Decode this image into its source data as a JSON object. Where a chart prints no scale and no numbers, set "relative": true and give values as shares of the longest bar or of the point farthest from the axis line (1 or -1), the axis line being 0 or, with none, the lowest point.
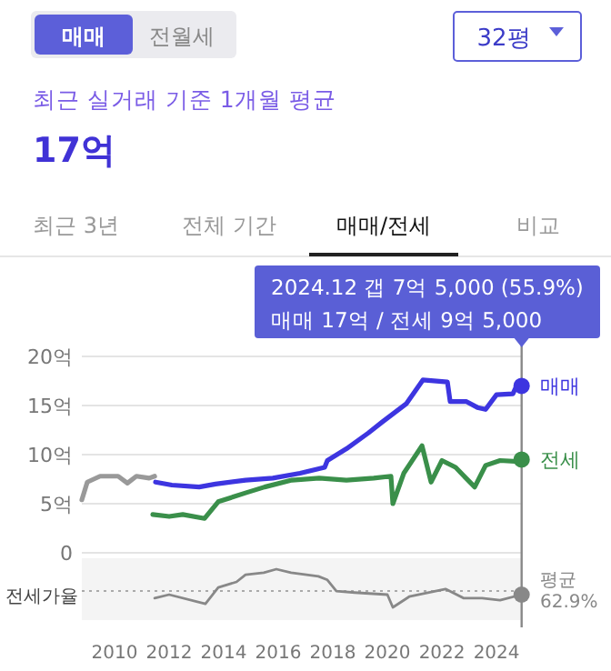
{
  "chart_data": [
    {
      "type": "line",
      "title": "17억",
      "subtitle": "최근 실거래 기준 1개월 평균",
      "annotations": [
        "매매",
        "전월세",
        "32평",
        "최근 3년",
        "전체 기간",
        "매매/전세",
        "비교",
        "2024.12  갭 7억 5,000 (55.9%)",
        "매매 17억 / 전세 9억 5,000"
      ],
      "xlim": [
        2008.8,
        2024.93
      ],
      "ylim": [
        0,
        20
      ],
      "yticks": [
        0,
        {
          "value": 5,
          "label": "5억"
        },
        {
          "value": 10,
          "label": "10억"
        },
        {
          "value": 15,
          "label": "15억"
        },
        {
          "value": 20,
          "label": "20억"
        }
      ],
      "grid": "y",
      "tick_labels": "y",
      "ref_lines": [
        {
          "axis": "x",
          "value": 2024.92,
          "color": "#888888"
        }
      ],
      "series": [
        {
          "color": "#999999",
          "x": [
            2008.8,
            2009.0,
            2009.47,
            2010.13,
            2010.47,
            2010.8,
            2011.27,
            2011.47
          ],
          "values": [
            5.4,
            7.2,
            7.8,
            7.8,
            7.1,
            7.8,
            7.6,
            7.8
          ]
        },
        {
          "name": "매매",
          "color": "#3d35e0",
          "x": [
            2011.5,
            2012.1,
            2013.1,
            2013.7,
            2014.8,
            2015.8,
            2016.8,
            2017.7,
            2017.8,
            2018.5,
            2019.3,
            2019.8,
            2020.7,
            2021.3,
            2022.2,
            2022.3,
            2022.9,
            2023.3,
            2023.6,
            2024.0,
            2024.6,
            2024.7,
            2024.92
          ],
          "values": [
            7.2,
            6.9,
            6.7,
            7.0,
            7.4,
            7.6,
            8.1,
            8.7,
            9.4,
            10.6,
            12.2,
            13.3,
            15.2,
            17.6,
            17.4,
            15.4,
            15.4,
            14.8,
            14.6,
            16.1,
            16.2,
            16.8,
            17.0
          ]
        },
        {
          "name": "전세",
          "color": "#3a8f4a",
          "x": [
            2011.4,
            2012.0,
            2012.5,
            2013.3,
            2013.8,
            2014.8,
            2015.5,
            2016.5,
            2017.5,
            2018.5,
            2019.5,
            2020.13,
            2020.2,
            2020.6,
            2021.27,
            2021.6,
            2022.0,
            2022.5,
            2023.2,
            2023.6,
            2024.13,
            2024.8,
            2024.92
          ],
          "values": [
            3.9,
            3.7,
            3.9,
            3.5,
            5.2,
            6.1,
            6.7,
            7.4,
            7.6,
            7.4,
            7.6,
            7.8,
            5.0,
            8.1,
            10.9,
            7.2,
            9.4,
            8.7,
            6.7,
            8.9,
            9.4,
            9.3,
            9.5
          ]
        }
      ]
    },
    {
      "type": "line",
      "relative": true,
      "ylabel": "전세가율",
      "tick_labels": "x",
      "xlim": [
        2008.8,
        2024.93
      ],
      "xticks": [
        2010,
        2012,
        2014,
        2016,
        2018,
        2020,
        2022,
        2024
      ],
      "ref_lines": [
        {
          "axis": "y",
          "value": 0.57,
          "label": "평균 62.9%",
          "line_style": "dotted",
          "color": "#aaaaaa"
        },
        {
          "axis": "x",
          "value": 2024.92,
          "color": "#888888"
        }
      ],
      "series": [
        {
          "color": "#888888",
          "x": [
            2011.47,
            2012.0,
            2013.33,
            2013.8,
            2014.47,
            2014.8,
            2015.47,
            2015.93,
            2016.47,
            2017.47,
            2017.8,
            2018.13,
            2018.8,
            2020.0,
            2020.2,
            2020.8,
            2022.13,
            2022.8,
            2023.47,
            2024.13,
            2024.92
          ],
          "values": [
            0.43,
            0.5,
            0.32,
            0.64,
            0.75,
            0.89,
            0.93,
            1,
            0.93,
            0.86,
            0.79,
            0.57,
            0.54,
            0.5,
            0.25,
            0.46,
            0.61,
            0.43,
            0.43,
            0.39,
            0.5
          ]
        }
      ]
    }
  ]
}
